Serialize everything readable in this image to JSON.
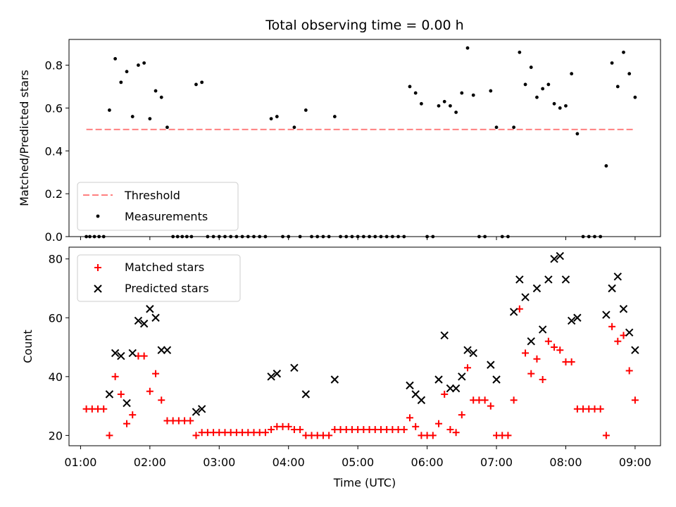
{
  "figure": {
    "title": "Total observing time = 0.00 h",
    "xlabel": "Time (UTC)"
  },
  "colors": {
    "threshold": "#ff8080",
    "measurements": "#000000",
    "matched": "#ff0000",
    "predicted": "#000000"
  },
  "chart_data": [
    {
      "type": "scatter",
      "ylabel": "Matched/Predicted stars",
      "xlim": [
        "00:50",
        "09:22"
      ],
      "ylim": [
        0,
        0.92
      ],
      "yticks": [
        0.0,
        0.2,
        0.4,
        0.6,
        0.8
      ],
      "ytick_labels": [
        "0.0",
        "0.2",
        "0.4",
        "0.6",
        "0.8"
      ],
      "threshold": {
        "name": "Threshold",
        "value": 0.5,
        "x_range": [
          "01:05",
          "09:00"
        ]
      },
      "legend": {
        "placement": "lower-left",
        "entries": [
          "Threshold",
          "Measurements"
        ]
      },
      "series": [
        {
          "name": "Measurements",
          "marker": "dot",
          "points": [
            [
              "01:05",
              0
            ],
            [
              "01:08",
              0
            ],
            [
              "01:12",
              0
            ],
            [
              "01:16",
              0
            ],
            [
              "01:20",
              0
            ],
            [
              "01:25",
              0.59
            ],
            [
              "01:30",
              0.83
            ],
            [
              "01:35",
              0.72
            ],
            [
              "01:40",
              0.77
            ],
            [
              "01:45",
              0.56
            ],
            [
              "01:50",
              0.8
            ],
            [
              "01:55",
              0.81
            ],
            [
              "02:00",
              0.55
            ],
            [
              "02:05",
              0.68
            ],
            [
              "02:10",
              0.65
            ],
            [
              "02:15",
              0.51
            ],
            [
              "02:20",
              0
            ],
            [
              "02:24",
              0
            ],
            [
              "02:28",
              0
            ],
            [
              "02:32",
              0
            ],
            [
              "02:36",
              0
            ],
            [
              "02:40",
              0.71
            ],
            [
              "02:45",
              0.72
            ],
            [
              "02:50",
              0
            ],
            [
              "02:55",
              0
            ],
            [
              "03:00",
              0
            ],
            [
              "03:05",
              0
            ],
            [
              "03:10",
              0
            ],
            [
              "03:15",
              0
            ],
            [
              "03:20",
              0
            ],
            [
              "03:25",
              0
            ],
            [
              "03:30",
              0
            ],
            [
              "03:35",
              0
            ],
            [
              "03:40",
              0
            ],
            [
              "03:45",
              0.55
            ],
            [
              "03:50",
              0.56
            ],
            [
              "03:55",
              0
            ],
            [
              "04:00",
              0
            ],
            [
              "04:05",
              0.51
            ],
            [
              "04:10",
              0
            ],
            [
              "04:15",
              0.59
            ],
            [
              "04:20",
              0
            ],
            [
              "04:25",
              0
            ],
            [
              "04:30",
              0
            ],
            [
              "04:35",
              0
            ],
            [
              "04:40",
              0.56
            ],
            [
              "04:45",
              0
            ],
            [
              "04:50",
              0
            ],
            [
              "04:55",
              0
            ],
            [
              "05:00",
              0
            ],
            [
              "05:05",
              0
            ],
            [
              "05:10",
              0
            ],
            [
              "05:15",
              0
            ],
            [
              "05:20",
              0
            ],
            [
              "05:25",
              0
            ],
            [
              "05:30",
              0
            ],
            [
              "05:35",
              0
            ],
            [
              "05:40",
              0
            ],
            [
              "05:45",
              0.7
            ],
            [
              "05:50",
              0.67
            ],
            [
              "05:55",
              0.62
            ],
            [
              "06:00",
              0
            ],
            [
              "06:05",
              0
            ],
            [
              "06:10",
              0.61
            ],
            [
              "06:15",
              0.63
            ],
            [
              "06:20",
              0.61
            ],
            [
              "06:25",
              0.58
            ],
            [
              "06:30",
              0.67
            ],
            [
              "06:35",
              0.88
            ],
            [
              "06:40",
              0.66
            ],
            [
              "06:45",
              0
            ],
            [
              "06:50",
              0
            ],
            [
              "06:55",
              0.68
            ],
            [
              "07:00",
              0.51
            ],
            [
              "07:05",
              0
            ],
            [
              "07:10",
              0
            ],
            [
              "07:15",
              0.51
            ],
            [
              "07:20",
              0.86
            ],
            [
              "07:25",
              0.71
            ],
            [
              "07:30",
              0.79
            ],
            [
              "07:35",
              0.65
            ],
            [
              "07:40",
              0.69
            ],
            [
              "07:45",
              0.71
            ],
            [
              "07:50",
              0.62
            ],
            [
              "07:55",
              0.6
            ],
            [
              "08:00",
              0.61
            ],
            [
              "08:05",
              0.76
            ],
            [
              "08:10",
              0.48
            ],
            [
              "08:15",
              0
            ],
            [
              "08:20",
              0
            ],
            [
              "08:25",
              0
            ],
            [
              "08:30",
              0
            ],
            [
              "08:35",
              0.33
            ],
            [
              "08:40",
              0.81
            ],
            [
              "08:45",
              0.7
            ],
            [
              "08:50",
              0.86
            ],
            [
              "08:55",
              0.76
            ],
            [
              "09:00",
              0.65
            ]
          ]
        }
      ]
    },
    {
      "type": "scatter",
      "ylabel": "Count",
      "xlabel": "Time (UTC)",
      "xlim": [
        "00:50",
        "09:22"
      ],
      "ylim": [
        16.5,
        84
      ],
      "yticks": [
        20,
        40,
        60,
        80
      ],
      "ytick_labels": [
        "20",
        "40",
        "60",
        "80"
      ],
      "xticks": [
        "01:00",
        "02:00",
        "03:00",
        "04:00",
        "05:00",
        "06:00",
        "07:00",
        "08:00",
        "09:00"
      ],
      "legend": {
        "placement": "upper-left",
        "entries": [
          "Matched stars",
          "Predicted stars"
        ]
      },
      "series": [
        {
          "name": "Matched stars",
          "marker": "plus",
          "points": [
            [
              "01:05",
              29
            ],
            [
              "01:10",
              29
            ],
            [
              "01:15",
              29
            ],
            [
              "01:20",
              29
            ],
            [
              "01:25",
              20
            ],
            [
              "01:30",
              40
            ],
            [
              "01:35",
              34
            ],
            [
              "01:40",
              24
            ],
            [
              "01:45",
              27
            ],
            [
              "01:50",
              47
            ],
            [
              "01:55",
              47
            ],
            [
              "02:00",
              35
            ],
            [
              "02:05",
              41
            ],
            [
              "02:10",
              32
            ],
            [
              "02:15",
              25
            ],
            [
              "02:20",
              25
            ],
            [
              "02:25",
              25
            ],
            [
              "02:30",
              25
            ],
            [
              "02:35",
              25
            ],
            [
              "02:40",
              20
            ],
            [
              "02:45",
              21
            ],
            [
              "02:50",
              21
            ],
            [
              "02:55",
              21
            ],
            [
              "03:00",
              21
            ],
            [
              "03:05",
              21
            ],
            [
              "03:10",
              21
            ],
            [
              "03:15",
              21
            ],
            [
              "03:20",
              21
            ],
            [
              "03:25",
              21
            ],
            [
              "03:30",
              21
            ],
            [
              "03:35",
              21
            ],
            [
              "03:40",
              21
            ],
            [
              "03:45",
              22
            ],
            [
              "03:50",
              23
            ],
            [
              "03:55",
              23
            ],
            [
              "04:00",
              23
            ],
            [
              "04:05",
              22
            ],
            [
              "04:10",
              22
            ],
            [
              "04:15",
              20
            ],
            [
              "04:20",
              20
            ],
            [
              "04:25",
              20
            ],
            [
              "04:30",
              20
            ],
            [
              "04:35",
              20
            ],
            [
              "04:40",
              22
            ],
            [
              "04:45",
              22
            ],
            [
              "04:50",
              22
            ],
            [
              "04:55",
              22
            ],
            [
              "05:00",
              22
            ],
            [
              "05:05",
              22
            ],
            [
              "05:10",
              22
            ],
            [
              "05:15",
              22
            ],
            [
              "05:20",
              22
            ],
            [
              "05:25",
              22
            ],
            [
              "05:30",
              22
            ],
            [
              "05:35",
              22
            ],
            [
              "05:40",
              22
            ],
            [
              "05:45",
              26
            ],
            [
              "05:50",
              23
            ],
            [
              "05:55",
              20
            ],
            [
              "06:00",
              20
            ],
            [
              "06:05",
              20
            ],
            [
              "06:10",
              24
            ],
            [
              "06:15",
              34
            ],
            [
              "06:20",
              22
            ],
            [
              "06:25",
              21
            ],
            [
              "06:30",
              27
            ],
            [
              "06:35",
              43
            ],
            [
              "06:40",
              32
            ],
            [
              "06:45",
              32
            ],
            [
              "06:50",
              32
            ],
            [
              "06:55",
              30
            ],
            [
              "07:00",
              20
            ],
            [
              "07:05",
              20
            ],
            [
              "07:10",
              20
            ],
            [
              "07:15",
              32
            ],
            [
              "07:20",
              63
            ],
            [
              "07:25",
              48
            ],
            [
              "07:30",
              41
            ],
            [
              "07:35",
              46
            ],
            [
              "07:40",
              39
            ],
            [
              "07:45",
              52
            ],
            [
              "07:50",
              50
            ],
            [
              "07:55",
              49
            ],
            [
              "08:00",
              45
            ],
            [
              "08:05",
              45
            ],
            [
              "08:10",
              29
            ],
            [
              "08:15",
              29
            ],
            [
              "08:20",
              29
            ],
            [
              "08:25",
              29
            ],
            [
              "08:30",
              29
            ],
            [
              "08:35",
              20
            ],
            [
              "08:40",
              57
            ],
            [
              "08:45",
              52
            ],
            [
              "08:50",
              54
            ],
            [
              "08:55",
              42
            ],
            [
              "09:00",
              32
            ]
          ]
        },
        {
          "name": "Predicted stars",
          "marker": "x",
          "points": [
            [
              "01:25",
              34
            ],
            [
              "01:30",
              48
            ],
            [
              "01:35",
              47
            ],
            [
              "01:40",
              31
            ],
            [
              "01:45",
              48
            ],
            [
              "01:50",
              59
            ],
            [
              "01:55",
              58
            ],
            [
              "02:00",
              63
            ],
            [
              "02:05",
              60
            ],
            [
              "02:10",
              49
            ],
            [
              "02:15",
              49
            ],
            [
              "02:40",
              28
            ],
            [
              "02:45",
              29
            ],
            [
              "03:45",
              40
            ],
            [
              "03:50",
              41
            ],
            [
              "04:05",
              43
            ],
            [
              "04:15",
              34
            ],
            [
              "04:40",
              39
            ],
            [
              "05:45",
              37
            ],
            [
              "05:50",
              34
            ],
            [
              "05:55",
              32
            ],
            [
              "06:10",
              39
            ],
            [
              "06:15",
              54
            ],
            [
              "06:20",
              36
            ],
            [
              "06:25",
              36
            ],
            [
              "06:30",
              40
            ],
            [
              "06:35",
              49
            ],
            [
              "06:40",
              48
            ],
            [
              "06:55",
              44
            ],
            [
              "07:00",
              39
            ],
            [
              "07:15",
              62
            ],
            [
              "07:20",
              73
            ],
            [
              "07:25",
              67
            ],
            [
              "07:30",
              52
            ],
            [
              "07:35",
              70
            ],
            [
              "07:40",
              56
            ],
            [
              "07:45",
              73
            ],
            [
              "07:50",
              80
            ],
            [
              "07:55",
              81
            ],
            [
              "08:00",
              73
            ],
            [
              "08:05",
              59
            ],
            [
              "08:10",
              60
            ],
            [
              "08:35",
              61
            ],
            [
              "08:40",
              70
            ],
            [
              "08:45",
              74
            ],
            [
              "08:50",
              63
            ],
            [
              "08:55",
              55
            ],
            [
              "09:00",
              49
            ]
          ]
        }
      ]
    }
  ]
}
